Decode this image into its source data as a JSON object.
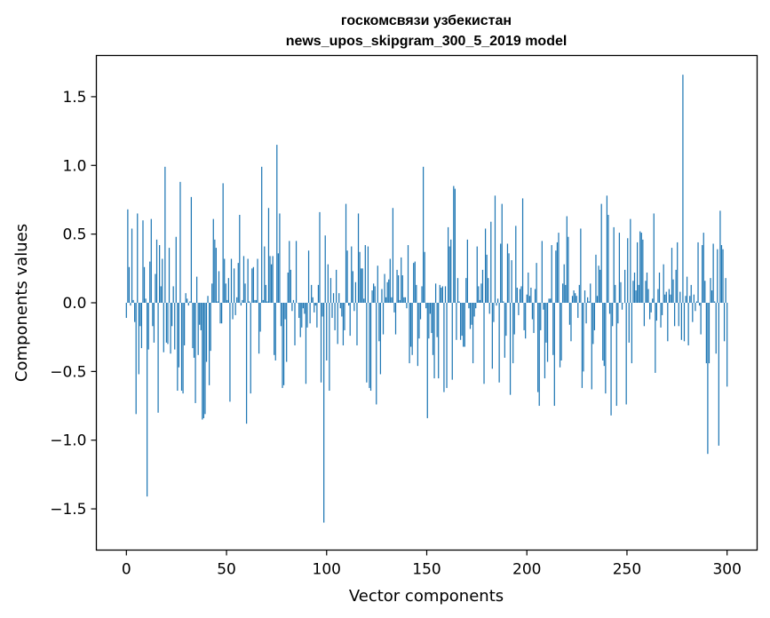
{
  "chart_data": {
    "type": "bar",
    "title_lines": [
      "госкомсвязи узбекистан",
      "news_upos_skipgram_300_5_2019 model"
    ],
    "xlabel": "Vector components",
    "ylabel": "Components values",
    "xlim": [
      -15,
      315
    ],
    "ylim": [
      -1.8,
      1.8
    ],
    "x_ticks": [
      0,
      50,
      100,
      150,
      200,
      250,
      300
    ],
    "x_tick_labels": [
      "0",
      "50",
      "100",
      "150",
      "200",
      "250",
      "300"
    ],
    "y_ticks": [
      -1.5,
      -1.0,
      -0.5,
      0.0,
      0.5,
      1.0,
      1.5
    ],
    "y_tick_labels": [
      "−1.5",
      "−1.0",
      "−0.5",
      "0.0",
      "0.5",
      "1.0",
      "1.5"
    ],
    "bar_color": "#1f77b4",
    "grid": false,
    "values": [
      -0.11,
      0.68,
      0.26,
      -0.02,
      0.54,
      0.02,
      -0.14,
      -0.81,
      0.65,
      -0.52,
      -0.17,
      -0.33,
      0.6,
      0.26,
      0.03,
      -1.41,
      -0.34,
      0.3,
      0.61,
      -0.17,
      -0.29,
      0.21,
      0.46,
      -0.8,
      0.42,
      0.12,
      0.32,
      -0.36,
      0.99,
      -0.29,
      -0.3,
      0.4,
      -0.37,
      -0.17,
      0.12,
      -0.34,
      0.48,
      -0.64,
      -0.47,
      0.88,
      -0.64,
      -0.66,
      -0.31,
      0.07,
      0.03,
      -0.02,
      0.01,
      0.77,
      -0.33,
      -0.4,
      -0.73,
      0.19,
      -0.38,
      -0.16,
      -0.2,
      -0.85,
      -0.84,
      -0.81,
      -0.43,
      0.05,
      -0.6,
      -0.35,
      0.14,
      0.61,
      0.46,
      0.4,
      0.01,
      0.23,
      -0.15,
      -0.15,
      0.87,
      0.32,
      0.14,
      0.02,
      0.18,
      -0.72,
      0.32,
      -0.12,
      0.25,
      -0.09,
      0.04,
      0.29,
      0.64,
      -0.02,
      0.02,
      0.34,
      0.14,
      -0.88,
      0.32,
      0.01,
      -0.66,
      0.25,
      0.26,
      0.02,
      0.02,
      0.32,
      -0.37,
      -0.21,
      0.99,
      0.02,
      0.41,
      0.13,
      0.01,
      0.69,
      0.34,
      0.28,
      0.34,
      -0.38,
      -0.42,
      1.15,
      0.36,
      0.65,
      -0.17,
      -0.62,
      -0.6,
      -0.12,
      -0.43,
      0.22,
      0.45,
      0.24,
      -0.06,
      0.02,
      -0.31,
      0.45,
      0.0,
      -0.11,
      -0.25,
      -0.18,
      -0.04,
      -0.08,
      -0.59,
      -0.18,
      0.38,
      -0.15,
      0.13,
      0.04,
      -0.07,
      -0.02,
      -0.18,
      0.13,
      0.66,
      -0.58,
      -0.1,
      -1.6,
      0.49,
      -0.42,
      0.28,
      -0.64,
      0.18,
      -0.11,
      0.07,
      -0.2,
      0.24,
      -0.3,
      0.07,
      -0.04,
      -0.1,
      -0.31,
      -0.2,
      0.72,
      0.38,
      -0.02,
      -0.24,
      0.41,
      0.23,
      -0.06,
      0.15,
      -0.31,
      0.65,
      0.37,
      0.25,
      0.25,
      0.03,
      0.42,
      -0.58,
      0.41,
      -0.62,
      -0.64,
      0.09,
      0.14,
      0.12,
      -0.74,
      0.27,
      -0.28,
      -0.52,
      0.1,
      -0.23,
      0.21,
      0.04,
      0.15,
      0.17,
      0.32,
      0.04,
      0.69,
      -0.07,
      -0.23,
      0.24,
      0.2,
      0.02,
      0.33,
      0.2,
      0.04,
      0.04,
      -0.04,
      0.42,
      -0.44,
      -0.32,
      -0.38,
      0.29,
      0.3,
      0.13,
      -0.46,
      -0.26,
      -0.12,
      0.12,
      0.99,
      0.37,
      -0.04,
      -0.84,
      -0.26,
      -0.08,
      -0.22,
      -0.38,
      -0.55,
      0.14,
      -0.25,
      -0.55,
      0.13,
      0.11,
      0.12,
      -0.65,
      0.12,
      -0.62,
      0.55,
      0.41,
      0.46,
      -0.56,
      0.85,
      0.83,
      -0.27,
      0.18,
      0.01,
      -0.27,
      -0.24,
      -0.32,
      -0.32,
      0.18,
      0.46,
      -0.04,
      -0.19,
      -0.16,
      -0.44,
      -0.1,
      -0.04,
      0.41,
      0.12,
      0.02,
      0.14,
      0.24,
      -0.59,
      0.54,
      0.35,
      0.18,
      -0.08,
      0.59,
      -0.48,
      -0.14,
      0.78,
      -0.02,
      0.03,
      -0.58,
      0.43,
      0.72,
      0.01,
      -0.4,
      -0.24,
      0.43,
      0.36,
      -0.67,
      0.31,
      -0.44,
      -0.23,
      0.56,
      0.11,
      -0.09,
      0.1,
      0.12,
      0.76,
      -0.2,
      -0.26,
      0.06,
      0.22,
      0.05,
      0.11,
      -0.12,
      -0.22,
      0.1,
      0.29,
      -0.65,
      -0.75,
      -0.2,
      0.45,
      -0.05,
      -0.55,
      -0.29,
      -0.43,
      0.03,
      0.03,
      0.42,
      -0.38,
      -0.75,
      0.38,
      0.44,
      0.51,
      -0.47,
      -0.42,
      0.14,
      0.28,
      0.13,
      0.63,
      0.48,
      -0.16,
      -0.28,
      0.05,
      0.09,
      0.07,
      0.05,
      -0.11,
      0.13,
      0.54,
      -0.62,
      -0.5,
      0.09,
      -0.15,
      0.04,
      0.01,
      0.14,
      -0.63,
      -0.3,
      -0.2,
      0.35,
      0.05,
      0.27,
      0.24,
      0.72,
      -0.42,
      -0.46,
      -0.66,
      0.78,
      0.64,
      -0.08,
      -0.82,
      -0.17,
      0.55,
      0.13,
      -0.75,
      -0.15,
      0.51,
      0.15,
      -0.05,
      0.0,
      0.24,
      -0.74,
      0.47,
      -0.29,
      0.61,
      -0.44,
      0.16,
      0.22,
      0.09,
      0.44,
      0.13,
      0.52,
      0.51,
      0.46,
      -0.17,
      0.16,
      0.22,
      0.1,
      -0.12,
      -0.07,
      0.03,
      0.65,
      -0.51,
      -0.13,
      0.1,
      0.22,
      -0.18,
      -0.09,
      0.28,
      0.06,
      0.08,
      -0.28,
      0.1,
      0.06,
      0.4,
      0.17,
      -0.17,
      0.24,
      0.44,
      -0.17,
      0.08,
      -0.27,
      1.66,
      -0.28,
      0.05,
      0.19,
      -0.31,
      0.05,
      0.13,
      -0.14,
      0.06,
      -0.06,
      0.01,
      0.44,
      -0.02,
      -0.23,
      0.42,
      0.51,
      0.16,
      -0.44,
      -1.1,
      -0.44,
      0.18,
      0.09,
      0.43,
      0.01,
      -0.37,
      0.39,
      -1.04,
      0.67,
      0.42,
      0.39,
      -0.28,
      0.18,
      -0.61
    ]
  }
}
